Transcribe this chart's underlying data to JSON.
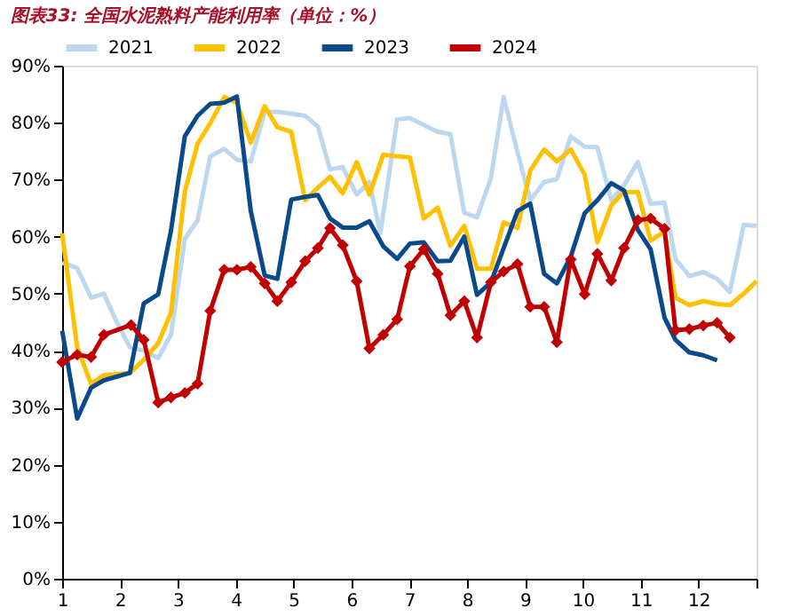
{
  "chart_data": {
    "type": "line",
    "title": "图表33: 全国水泥熟料产能利用率（单位：%）",
    "xlim": [
      1,
      13
    ],
    "xticks": [
      1,
      2,
      3,
      4,
      5,
      6,
      7,
      8,
      9,
      10,
      11,
      12,
      {
        "value": 13,
        "label": null
      }
    ],
    "ylim": [
      0,
      90
    ],
    "yticks": [
      {
        "value": 0,
        "label": "0%"
      },
      {
        "value": 10,
        "label": "10%"
      },
      {
        "value": 20,
        "label": "20%"
      },
      {
        "value": 30,
        "label": "30%"
      },
      {
        "value": 40,
        "label": "40%"
      },
      {
        "value": 50,
        "label": "50%"
      },
      {
        "value": 60,
        "label": "60%"
      },
      {
        "value": 70,
        "label": "70%"
      },
      {
        "value": 80,
        "label": "80%"
      },
      {
        "value": 90,
        "label": "90%"
      }
    ],
    "grid": false,
    "legend": "top",
    "series": [
      {
        "name": "2021",
        "color": "#bdd7ee",
        "marker": "none",
        "x": [
          1,
          1.26,
          1.5,
          1.72,
          1.94,
          2.17,
          2.41,
          2.66,
          2.88,
          3.12,
          3.34,
          3.56,
          3.8,
          4.02,
          4.26,
          4.5,
          4.72,
          4.96,
          5.2,
          5.42,
          5.63,
          5.85,
          6.09,
          6.31,
          6.5,
          6.79,
          7.01,
          7.25,
          7.49,
          7.71,
          7.95,
          8.17,
          8.41,
          8.63,
          8.87,
          9.09,
          9.33,
          9.55,
          9.79,
          10.03,
          10.25,
          10.49,
          10.71,
          10.95,
          11.17,
          11.41,
          11.6,
          11.84,
          12.08,
          12.32,
          12.54,
          12.78,
          13.0
        ],
        "values": [
          55.4,
          54.5,
          49.3,
          50,
          45.1,
          40.6,
          40,
          38.7,
          42.8,
          59.6,
          62.9,
          74.1,
          75.4,
          73.5,
          73.2,
          81.9,
          81.9,
          81.6,
          81.2,
          79.3,
          71.8,
          72.2,
          67.4,
          69.6,
          60.6,
          80.6,
          80.8,
          79.6,
          78.4,
          78,
          64.2,
          63.4,
          70.3,
          84.5,
          74.8,
          66.4,
          69.6,
          70.1,
          77.6,
          75.8,
          75.7,
          66.4,
          69,
          73.1,
          65.8,
          66,
          56.1,
          53.1,
          53.8,
          52.6,
          50.3,
          62.1,
          61.9
        ]
      },
      {
        "name": "2022",
        "color": "#ffc000",
        "marker": "none",
        "x": [
          1,
          1.26,
          1.5,
          1.72,
          2.17,
          2.41,
          2.66,
          2.88,
          3.12,
          3.34,
          3.56,
          3.8,
          4.02,
          4.26,
          4.5,
          4.72,
          4.96,
          5.2,
          5.42,
          5.63,
          5.85,
          6.09,
          6.31,
          6.55,
          6.79,
          7.01,
          7.25,
          7.49,
          7.71,
          7.95,
          8.17,
          8.41,
          8.63,
          8.87,
          9.09,
          9.33,
          9.55,
          9.79,
          10.03,
          10.25,
          10.49,
          10.71,
          10.95,
          11.17,
          11.41,
          11.6,
          11.84,
          12.08,
          12.32,
          12.54,
          12.78,
          13.0
        ],
        "values": [
          60.6,
          40.6,
          34.2,
          35.7,
          36.1,
          38.4,
          41.3,
          46.7,
          67.9,
          76.3,
          79.9,
          84.5,
          83.5,
          76.5,
          82.9,
          79.2,
          78.4,
          66.4,
          68.6,
          70.5,
          67.6,
          73.1,
          67.4,
          74.4,
          74.1,
          73.9,
          63.2,
          65.1,
          58.4,
          61.9,
          54.4,
          54.4,
          62.5,
          61.5,
          71.6,
          75.3,
          73.2,
          75.3,
          70.9,
          59,
          65.5,
          67.8,
          67.8,
          59.3,
          60.9,
          49.3,
          48,
          48.7,
          48.2,
          48,
          50,
          52.2
        ]
      },
      {
        "name": "2023",
        "color": "#0b4a8a",
        "marker": "none",
        "x": [
          1,
          1.26,
          1.5,
          1.72,
          2.17,
          2.41,
          2.66,
          2.88,
          3.12,
          3.34,
          3.56,
          3.8,
          4.02,
          4.26,
          4.5,
          4.72,
          4.96,
          5.2,
          5.42,
          5.63,
          5.85,
          6.09,
          6.31,
          6.55,
          6.79,
          7.01,
          7.25,
          7.49,
          7.71,
          7.95,
          8.17,
          8.41,
          8.63,
          8.87,
          9.09,
          9.33,
          9.55,
          9.79,
          10.03,
          10.25,
          10.49,
          10.71,
          10.95,
          11.17,
          11.41,
          11.6,
          11.84,
          12.08,
          12.32
        ],
        "values": [
          43.5,
          28.1,
          33.5,
          34.8,
          36.1,
          48.3,
          49.9,
          61,
          77.6,
          81.2,
          83.3,
          83.5,
          84.6,
          64.5,
          53.2,
          52.6,
          66.5,
          67,
          67.3,
          63.2,
          61.6,
          61.6,
          62.7,
          58.3,
          56.1,
          58.8,
          59,
          55.7,
          55.8,
          60,
          49.8,
          52,
          58,
          64.5,
          65.8,
          53.5,
          51.8,
          56.5,
          64.1,
          66.4,
          69.4,
          68.1,
          61.2,
          57.8,
          45.8,
          41.9,
          39.7,
          39.2,
          38.3
        ]
      },
      {
        "name": "2024",
        "color": "#c00000",
        "marker": "diamond",
        "x": [
          1,
          1.26,
          1.5,
          1.72,
          2.19,
          2.41,
          2.66,
          2.88,
          3.12,
          3.34,
          3.56,
          3.8,
          4.02,
          4.26,
          4.5,
          4.72,
          4.96,
          5.2,
          5.42,
          5.63,
          5.85,
          6.09,
          6.31,
          6.55,
          6.79,
          7.01,
          7.25,
          7.49,
          7.71,
          7.95,
          8.17,
          8.41,
          8.63,
          8.87,
          9.09,
          9.33,
          9.55,
          9.79,
          10.03,
          10.25,
          10.49,
          10.71,
          10.95,
          11.17,
          11.41,
          11.6,
          11.84,
          12.08,
          12.32,
          12.54
        ],
        "values": [
          38,
          39.3,
          38.9,
          42.8,
          44.5,
          41.9,
          30.9,
          31.8,
          32.6,
          34.2,
          47,
          54.2,
          54.2,
          54.7,
          51.8,
          48.7,
          52,
          55.7,
          58,
          61.5,
          58.5,
          52.2,
          40.4,
          42.8,
          45.5,
          54.8,
          57.8,
          53.5,
          46.2,
          48.7,
          42.3,
          52,
          53.9,
          55.2,
          47.7,
          47.7,
          41.5,
          56,
          49.9,
          57,
          52.3,
          58,
          62.9,
          63.2,
          61.4,
          43.6,
          43.8,
          44.4,
          44.9,
          42.3
        ]
      }
    ]
  }
}
